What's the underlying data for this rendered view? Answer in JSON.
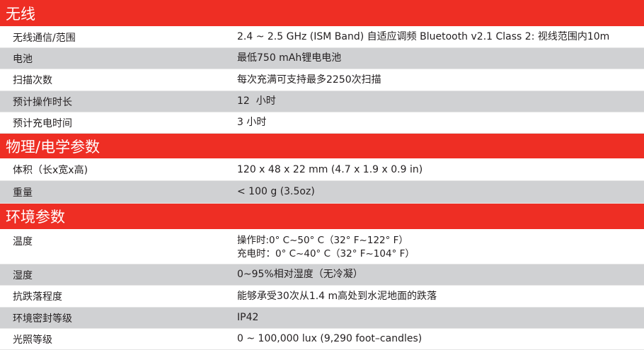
{
  "sections": [
    {
      "title": "无线",
      "rows": [
        {
          "label": "无线通信/范围",
          "value": "2.4 ~ 2.5 GHz (ISM Band) 自适应调频 Bluetooth v2.1 Class 2: 视线范围内10m"
        },
        {
          "label": "电池",
          "value": "最低750 mAh锂电电池"
        },
        {
          "label": "扫描次数",
          "value": "每次充满可支持最多2250次扫描"
        },
        {
          "label": "预计操作时长",
          "value": "12  小时"
        },
        {
          "label": "预计充电时间",
          "value": "3 小时"
        }
      ]
    },
    {
      "title": "物理/电学参数",
      "rows": [
        {
          "label": "体积（长x宽x高)",
          "value": "120 x 48 x 22 mm (4.7 x 1.9 x 0.9 in)"
        },
        {
          "label": "重量",
          "value": "< 100 g (3.5oz)"
        }
      ]
    },
    {
      "title": "环境参数",
      "rows": [
        {
          "label": "温度",
          "value": "操作时:0° C~50° C（32° F~122° F）",
          "value2": "充电时：0° C~40° C（32° F~104° F）"
        },
        {
          "label": "湿度",
          "value": "0~95%相对湿度（无冷凝）"
        },
        {
          "label": "抗跌落程度",
          "value": "能够承受30次从1.4 m高处到水泥地面的跌落"
        },
        {
          "label": "环境密封等级",
          "value": "IP42"
        },
        {
          "label": "光照等级",
          "value": "0 ~ 100,000 lux (9,290 foot–candles)"
        }
      ]
    }
  ],
  "colors": {
    "header": "#ee2e24",
    "stripe": "#d0d1d3"
  }
}
